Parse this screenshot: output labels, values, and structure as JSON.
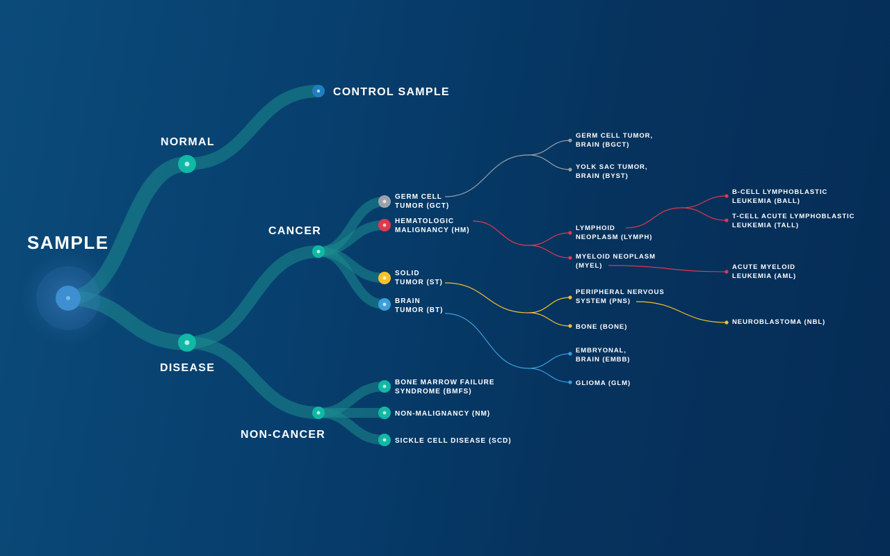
{
  "colors": {
    "teal": "#10b8a5",
    "teal_path": "#1c8d8e",
    "root_blue": "#3d8fd1",
    "gray": "#9aa1aa",
    "red": "#e0394e",
    "yellow": "#f6c12b",
    "blue": "#3a9fdc",
    "control_blue": "#1e7fc0"
  },
  "labels": {
    "root": "SAMPLE",
    "normal": "NORMAL",
    "control": "CONTROL SAMPLE",
    "disease": "DISEASE",
    "cancer": "CANCER",
    "noncancer": "NON-CANCER",
    "gct": [
      "GERM CELL",
      "TUMOR (GCT)"
    ],
    "hm": [
      "HEMATOLOGIC",
      "MALIGNANCY (HM)"
    ],
    "st": [
      "SOLID",
      "TUMOR (ST)"
    ],
    "bt": [
      "BRAIN",
      "TUMOR (BT)"
    ],
    "bmfs": [
      "BONE MARROW FAILURE",
      "SYNDROME (BMFS)"
    ],
    "nm": "NON-MALIGNANCY (NM)",
    "scd": "SICKLE CELL DISEASE (SCD)",
    "bgct": [
      "GERM CELL TUMOR,",
      "BRAIN (BGCT)"
    ],
    "byst": [
      "YOLK SAC TUMOR,",
      "BRAIN (BYST)"
    ],
    "lymph": [
      "LYMPHOID",
      "NEOPLASM (LYMPH)"
    ],
    "myel": [
      "MYELOID NEOPLASM",
      "(MYEL)"
    ],
    "pns": [
      "PERIPHERAL NERVOUS",
      "SYSTEM (PNS)"
    ],
    "bone": "BONE (BONE)",
    "embb": [
      "EMBRYONAL,",
      "BRAIN (EMBB)"
    ],
    "glm": "GLIOMA (GLM)",
    "ball": [
      "B-CELL LYMPHOBLASTIC",
      "LEUKEMIA (BALL)"
    ],
    "tall": [
      "T-CELL ACUTE LYMPHOBLASTIC",
      "LEUKEMIA (TALL)"
    ],
    "aml": [
      "ACUTE MYELOID",
      "LEUKEMIA (AML)"
    ],
    "nbl": "NEUROBLASTOMA (NBL)"
  }
}
